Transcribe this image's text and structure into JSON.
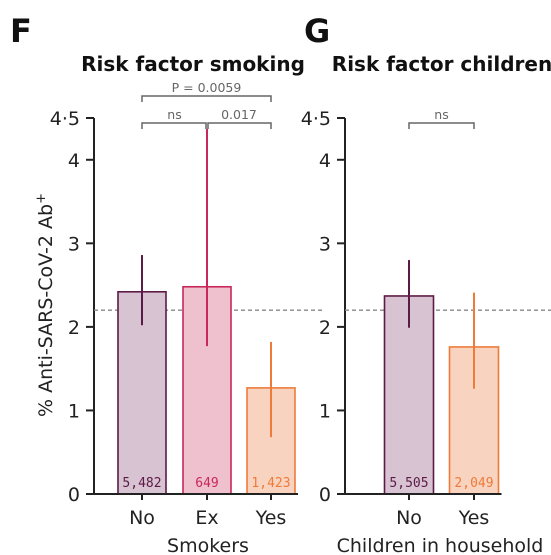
{
  "chart_data": [
    {
      "type": "bar",
      "panel": "F",
      "title": "Risk factor smoking",
      "xlabel": "Smokers",
      "ylabel": "% Anti-SARS-CoV-2 Ab",
      "ylabel_sup": "+",
      "ylim": [
        0,
        4.5
      ],
      "yticks": [
        "0",
        "1",
        "2",
        "3",
        "4",
        "4·5"
      ],
      "reference_line": 2.2,
      "categories": [
        "No",
        "Ex",
        "Yes"
      ],
      "values": [
        2.42,
        2.48,
        1.27
      ],
      "ci_low": [
        2.02,
        1.77,
        0.68
      ],
      "ci_high": [
        2.86,
        4.37,
        1.82
      ],
      "n": [
        "5,482",
        "649",
        "1,423"
      ],
      "colors": [
        "#5c1b46",
        "#c8285a",
        "#ee7b3a"
      ],
      "fills": [
        "#d8c3d2",
        "#efc0cd",
        "#f8d3bf"
      ],
      "comparisons": [
        {
          "from": 0,
          "to": 2,
          "label": "P = 0.0059"
        },
        {
          "from": 0,
          "to": 1,
          "label": "ns"
        },
        {
          "from": 1,
          "to": 2,
          "label": "0.017"
        }
      ]
    },
    {
      "type": "bar",
      "panel": "G",
      "title": "Risk factor children",
      "xlabel": "Children in household",
      "ylim": [
        0,
        4.5
      ],
      "yticks": [
        "0",
        "1",
        "2",
        "3",
        "4",
        "4·5"
      ],
      "reference_line": 2.2,
      "categories": [
        "No",
        "Yes"
      ],
      "values": [
        2.37,
        1.76
      ],
      "ci_low": [
        1.99,
        1.26
      ],
      "ci_high": [
        2.8,
        2.41
      ],
      "n": [
        "5,505",
        "2,049"
      ],
      "colors": [
        "#5c1b46",
        "#ee7b3a"
      ],
      "fills": [
        "#d8c3d2",
        "#f8d3bf"
      ],
      "comparisons": [
        {
          "from": 0,
          "to": 1,
          "label": "ns"
        }
      ]
    }
  ]
}
